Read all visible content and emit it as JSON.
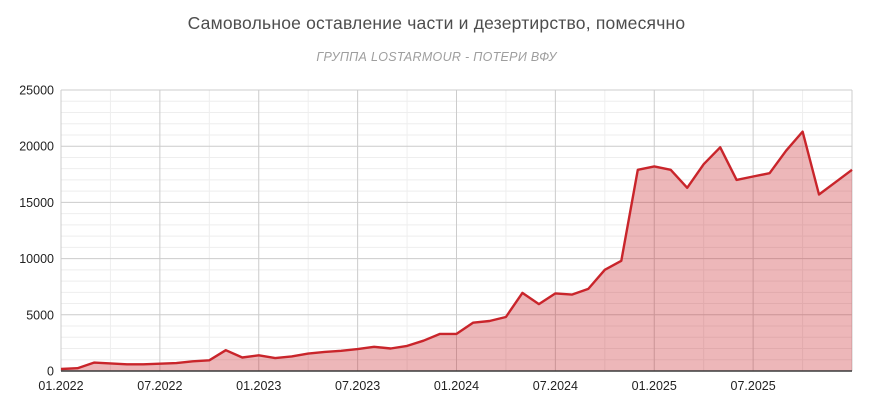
{
  "chart_data": {
    "type": "area",
    "title": "Самовольное оставление части и дезертирство, помесячно",
    "subtitle": "ГРУППА LOSTARMOUR - ПОТЕРИ ВФУ",
    "xlabel": "",
    "ylabel": "",
    "ylim": [
      0,
      25000
    ],
    "y_major_step": 5000,
    "y_minor_step": 1000,
    "grid": "on",
    "legend": "none",
    "x_tick_labels": [
      "01.2022",
      "07.2022",
      "01.2023",
      "07.2023",
      "01.2024",
      "07.2024",
      "01.2025",
      "07.2025"
    ],
    "y_tick_labels": [
      "0",
      "5000",
      "10000",
      "15000",
      "20000",
      "25000"
    ],
    "x": [
      "01.2022",
      "02.2022",
      "03.2022",
      "04.2022",
      "05.2022",
      "06.2022",
      "07.2022",
      "08.2022",
      "09.2022",
      "10.2022",
      "11.2022",
      "12.2022",
      "01.2023",
      "02.2023",
      "03.2023",
      "04.2023",
      "05.2023",
      "06.2023",
      "07.2023",
      "08.2023",
      "09.2023",
      "10.2023",
      "11.2023",
      "12.2023",
      "01.2024",
      "02.2024",
      "03.2024",
      "04.2024",
      "05.2024",
      "06.2024",
      "07.2024",
      "08.2024",
      "09.2024",
      "10.2024",
      "11.2024",
      "12.2024",
      "01.2025",
      "02.2025",
      "03.2025",
      "04.2025",
      "05.2025",
      "06.2025",
      "07.2025",
      "08.2025",
      "09.2025",
      "10.2025",
      "11.2025",
      "12.2025",
      "01.2026"
    ],
    "values": [
      180,
      250,
      750,
      680,
      600,
      600,
      650,
      700,
      860,
      950,
      1850,
      1200,
      1400,
      1150,
      1300,
      1550,
      1700,
      1800,
      1950,
      2150,
      2000,
      2230,
      2700,
      3300,
      3300,
      4300,
      4450,
      4800,
      6950,
      5950,
      6900,
      6800,
      7300,
      9000,
      9800,
      17900,
      18200,
      17900,
      16300,
      18400,
      19900,
      17000,
      17300,
      17600,
      19600,
      21300,
      15700,
      16800,
      17900
    ],
    "colors": {
      "line": "#c9252b",
      "fill": "#c9252b",
      "fill_opacity": 0.33,
      "axis_line": "#3a3a3a",
      "grid_major": "#cccccc",
      "grid_minor": "#eeeeee",
      "border": "#cccccc",
      "title": "#4d4d4d",
      "subtitle": "#9e9e9e",
      "tick_label": "#222222"
    }
  }
}
